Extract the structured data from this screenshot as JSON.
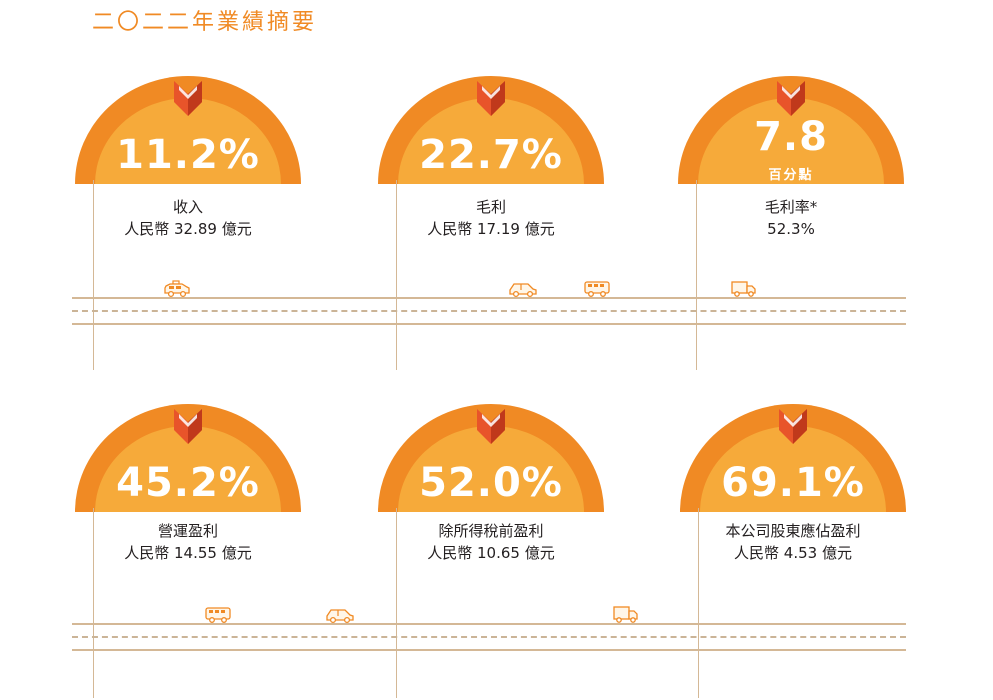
{
  "page": {
    "title": "二〇二二年業績摘要"
  },
  "colors": {
    "outer": "#f08a24",
    "inner": "#f6aa3a",
    "inner_light": "#f9b948",
    "pin": "#e8542a",
    "line": "#d4b896",
    "text": "#231f20"
  },
  "highlights": [
    {
      "metric": "11.2%",
      "metric_sub": "",
      "label": "收入",
      "value": "人民幣 32.89 億元"
    },
    {
      "metric": "22.7%",
      "metric_sub": "",
      "label": "毛利",
      "value": "人民幣 17.19 億元"
    },
    {
      "metric": "7.8",
      "metric_sub": "百分點",
      "label": "毛利率*",
      "value": "52.3%"
    },
    {
      "metric": "45.2%",
      "metric_sub": "",
      "label": "營運盈利",
      "value": "人民幣 14.55 億元"
    },
    {
      "metric": "52.0%",
      "metric_sub": "",
      "label": "除所得稅前盈利",
      "value": "人民幣 10.65 億元"
    },
    {
      "metric": "69.1%",
      "metric_sub": "",
      "label": "本公司股東應佔盈利",
      "value": "人民幣 4.53 億元"
    }
  ],
  "icons": {
    "upward_pin": "upward-chevron-icon",
    "vehicles": [
      "taxi-icon",
      "car-icon",
      "bus-icon",
      "truck-icon",
      "van-icon"
    ]
  }
}
